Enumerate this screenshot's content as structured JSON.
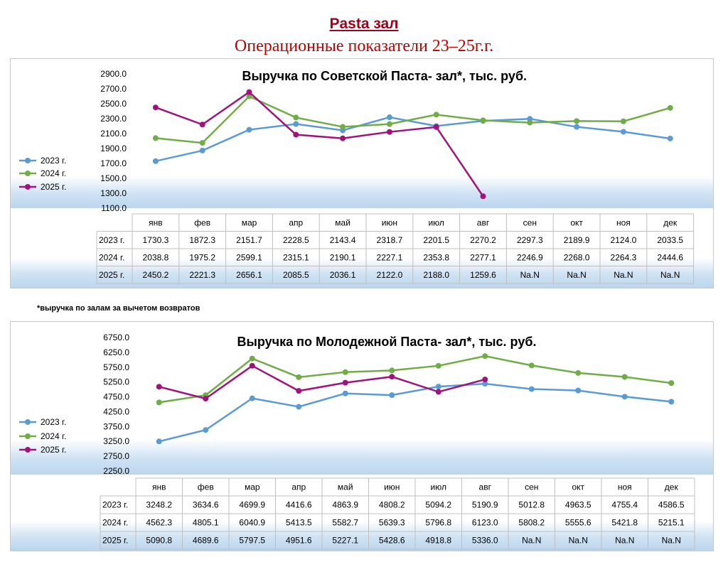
{
  "header": {
    "title": "Pasta зал",
    "subtitle": "Операционные показатели  23–25г.г."
  },
  "footnote": "*выручка по залам за вычетом возвратов",
  "series_colors": {
    "2023 г.": "#5b9bd5",
    "2024 г.": "#70ad47",
    "2025 г.": "#a0137c"
  },
  "chart_data": [
    {
      "type": "line",
      "title": "Выручка по Советской Паста- зал*, тыс. руб.",
      "categories": [
        "янв",
        "фев",
        "мар",
        "апр",
        "май",
        "июн",
        "июл",
        "авг",
        "сен",
        "окт",
        "ноя",
        "дек"
      ],
      "yticks": [
        "2900.0",
        "2700.0",
        "2500.0",
        "2300.0",
        "2100.0",
        "1900.0",
        "1700.0",
        "1500.0",
        "1300.0",
        "1100.0"
      ],
      "ylim": [
        1100,
        2900
      ],
      "legend": "left",
      "series": [
        {
          "name": "2023 г.",
          "values": [
            "1730.3",
            "1872.3",
            "2151.7",
            "2228.5",
            "2143.4",
            "2318.7",
            "2201.5",
            "2270.2",
            "2297.3",
            "2189.9",
            "2124.0",
            "2033.5"
          ]
        },
        {
          "name": "2024 г.",
          "values": [
            "2038.8",
            "1975.2",
            "2599.1",
            "2315.1",
            "2190.1",
            "2227.1",
            "2353.8",
            "2277.1",
            "2246.9",
            "2268.0",
            "2264.3",
            "2444.6"
          ]
        },
        {
          "name": "2025 г.",
          "values": [
            "2450.2",
            "2221.3",
            "2656.1",
            "2085.5",
            "2036.1",
            "2122.0",
            "2188.0",
            "1259.6",
            "Na.N",
            "Na.N",
            "Na.N",
            "Na.N"
          ]
        }
      ]
    },
    {
      "type": "line",
      "title": "Выручка по Молодежной Паста- зал*, тыс. руб.",
      "categories": [
        "янв",
        "фев",
        "мар",
        "апр",
        "май",
        "июн",
        "июл",
        "авг",
        "сен",
        "окт",
        "ноя",
        "дек"
      ],
      "yticks": [
        "6750.0",
        "6250.0",
        "5750.0",
        "5250.0",
        "4750.0",
        "4250.0",
        "3750.0",
        "3250.0",
        "2750.0",
        "2250.0"
      ],
      "ylim": [
        2250,
        6750
      ],
      "legend": "left",
      "series": [
        {
          "name": "2023 г.",
          "values": [
            "3248.2",
            "3634.6",
            "4699.9",
            "4416.6",
            "4863.9",
            "4808.2",
            "5094.2",
            "5190.9",
            "5012.8",
            "4963.5",
            "4755.4",
            "4586.5"
          ]
        },
        {
          "name": "2024 г.",
          "values": [
            "4562.3",
            "4805.1",
            "6040.9",
            "5413.5",
            "5582.7",
            "5639.3",
            "5796.8",
            "6123.0",
            "5808.2",
            "5555.6",
            "5421.8",
            "5215.1"
          ]
        },
        {
          "name": "2025 г.",
          "values": [
            "5090.8",
            "4689.6",
            "5797.5",
            "4951.6",
            "5227.1",
            "5428.6",
            "4918.8",
            "5336.0",
            "Na.N",
            "Na.N",
            "Na.N",
            "Na.N"
          ]
        }
      ]
    }
  ]
}
